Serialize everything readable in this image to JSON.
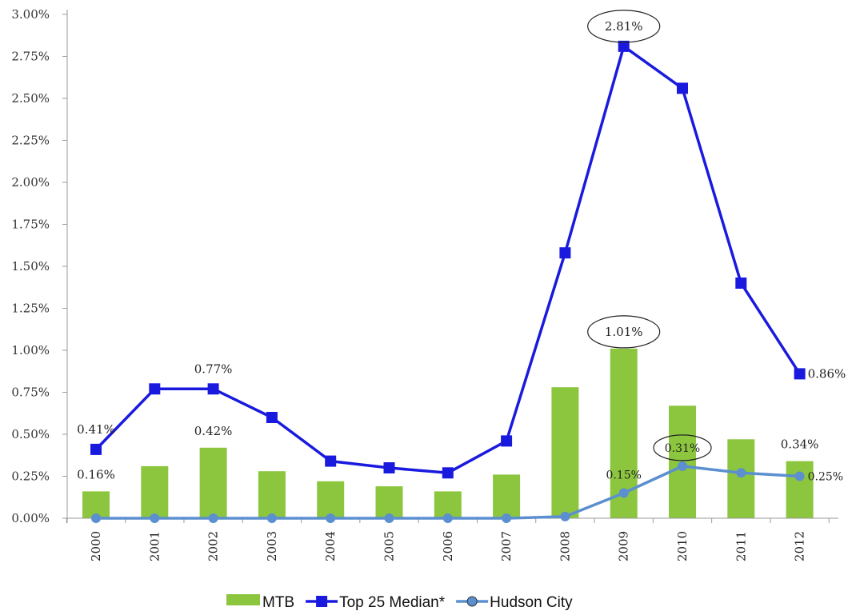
{
  "chart_data": {
    "type": "bar",
    "categories": [
      "2000",
      "2001",
      "2002",
      "2003",
      "2004",
      "2005",
      "2006",
      "2007",
      "2008",
      "2009",
      "2010",
      "2011",
      "2012"
    ],
    "ylim": [
      0,
      3.0
    ],
    "yticks": [
      "0.00%",
      "0.25%",
      "0.50%",
      "0.75%",
      "1.00%",
      "1.25%",
      "1.50%",
      "1.75%",
      "2.00%",
      "2.25%",
      "2.50%",
      "2.75%",
      "3.00%"
    ],
    "series": [
      {
        "name": "MTB",
        "kind": "bar",
        "color": "#8cc63f",
        "values": [
          0.16,
          0.31,
          0.42,
          0.28,
          0.22,
          0.19,
          0.16,
          0.26,
          0.78,
          1.01,
          0.67,
          0.47,
          0.34
        ]
      },
      {
        "name": "Top 25 Median*",
        "kind": "line",
        "color": "#1a1adf",
        "marker": "square",
        "values": [
          0.41,
          0.77,
          0.77,
          0.6,
          0.34,
          0.3,
          0.27,
          0.46,
          1.58,
          2.81,
          2.56,
          1.4,
          0.86
        ]
      },
      {
        "name": "Hudson City",
        "kind": "line",
        "color": "#5b8fd0",
        "marker": "circle",
        "values": [
          0.0,
          0.0,
          0.0,
          0.0,
          0.0,
          0.0,
          0.0,
          0.0,
          0.01,
          0.15,
          0.31,
          0.27,
          0.25
        ]
      }
    ],
    "data_labels": [
      {
        "series": 1,
        "index": 0,
        "text": "0.41%",
        "pos": "above"
      },
      {
        "series": 1,
        "index": 2,
        "text": "0.77%",
        "pos": "above"
      },
      {
        "series": 1,
        "index": 9,
        "text": "2.81%",
        "pos": "above",
        "circled": true
      },
      {
        "series": 1,
        "index": 12,
        "text": "0.86%",
        "pos": "right"
      },
      {
        "series": 0,
        "index": 0,
        "text": "0.16%",
        "pos": "above"
      },
      {
        "series": 0,
        "index": 2,
        "text": "0.42%",
        "pos": "above"
      },
      {
        "series": 0,
        "index": 9,
        "text": "1.01%",
        "pos": "above",
        "circled": true
      },
      {
        "series": 0,
        "index": 12,
        "text": "0.34%",
        "pos": "above"
      },
      {
        "series": 2,
        "index": 9,
        "text": "0.15%",
        "pos": "above"
      },
      {
        "series": 2,
        "index": 10,
        "text": "0.31%",
        "pos": "above",
        "circled": true
      },
      {
        "series": 2,
        "index": 12,
        "text": "0.25%",
        "pos": "right"
      }
    ],
    "legend_position": "bottom",
    "grid": false
  }
}
